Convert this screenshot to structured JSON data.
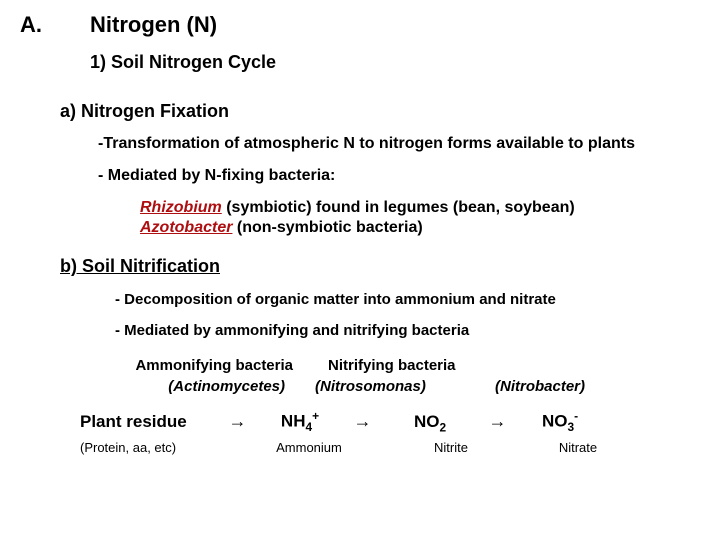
{
  "header": {
    "letter": "A.",
    "title": "Nitrogen (N)",
    "subtitle": "1) Soil Nitrogen Cycle"
  },
  "sectionA": {
    "heading": "a)  Nitrogen Fixation",
    "line1": "-Transformation of atmospheric N to nitrogen forms available to plants",
    "line2": "- Mediated by N-fixing bacteria:",
    "genus1": "Rhizobium",
    "genus1_rest": " (symbiotic) found in legumes (bean, soybean)",
    "genus2": "Azotobacter",
    "genus2_rest": " (non-symbiotic bacteria)"
  },
  "sectionB": {
    "heading": "b) Soil Nitrification",
    "line1": "- Decomposition of organic matter into ammonium and nitrate",
    "line2": "- Mediated by ammonifying and nitrifying bacteria",
    "bactLeft": "Ammonifying bacteria",
    "bactRight": "Nitrifying bacteria",
    "italic1": "(Actinomycetes)",
    "italic2": "(Nitrosomonas)",
    "italic3": "(Nitrobacter)"
  },
  "chem": {
    "plant": "Plant residue",
    "arrow": "→",
    "nh4": "NH",
    "nh4_sub": "4",
    "nh4_sup": "+",
    "no2": "NO",
    "no2_sub": "2",
    "no3": "NO",
    "no3_sub": "3",
    "no3_sup": "-",
    "label1": "(Protein, aa, etc)",
    "label2": "Ammonium",
    "label3": "Nitrite",
    "label4": "Nitrate"
  },
  "colors": {
    "genus": "#ae0e10",
    "text": "#000000",
    "bg": "#ffffff"
  }
}
